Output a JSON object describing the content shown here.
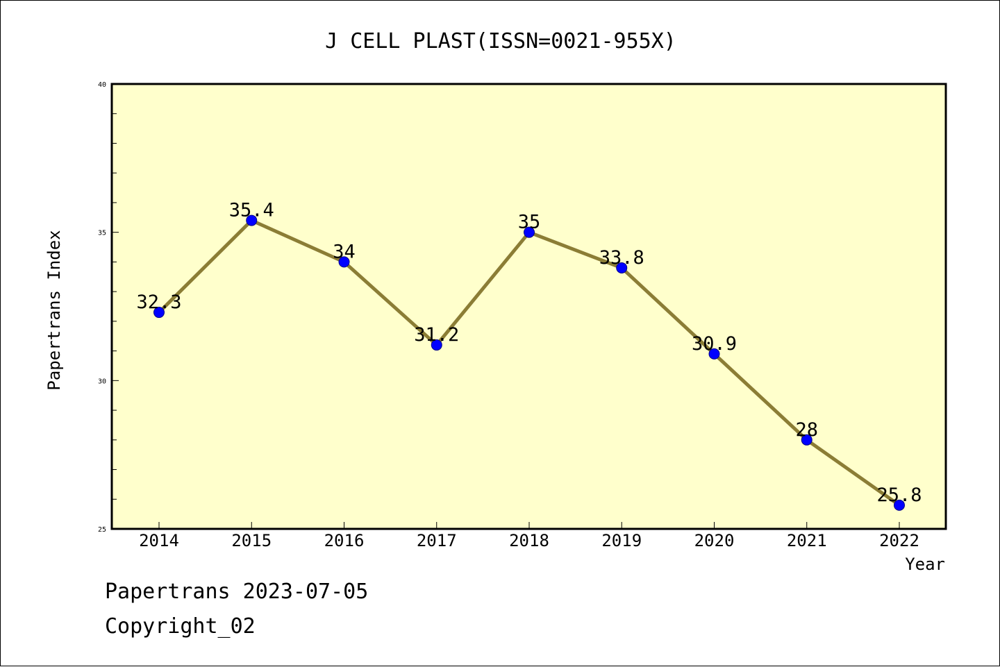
{
  "chart_data": {
    "type": "line",
    "title": "J CELL PLAST(ISSN=0021-955X)",
    "xlabel": "Year",
    "ylabel": "Papertrans Index",
    "categories": [
      "2014",
      "2015",
      "2016",
      "2017",
      "2018",
      "2019",
      "2020",
      "2021",
      "2022"
    ],
    "series": [
      {
        "values": [
          32.3,
          35.4,
          34,
          31.2,
          35,
          33.8,
          30.9,
          28,
          25.8
        ]
      }
    ],
    "data_labels": [
      "32.3",
      "35.4",
      "34",
      "31.2",
      "35",
      "33.8",
      "30.9",
      "28",
      "25.8"
    ],
    "ylim": [
      25,
      40
    ],
    "y_major_ticks": [
      "25",
      "30",
      "35",
      "40"
    ],
    "y_minor_step": 1,
    "grid": false,
    "colors": {
      "plot_background": "#ffffcc",
      "line": "#8b7d35",
      "marker": "#0000ff",
      "axis": "#000000"
    }
  },
  "footer": {
    "line1": "Papertrans 2023-07-05",
    "line2": "Copyright_02"
  }
}
